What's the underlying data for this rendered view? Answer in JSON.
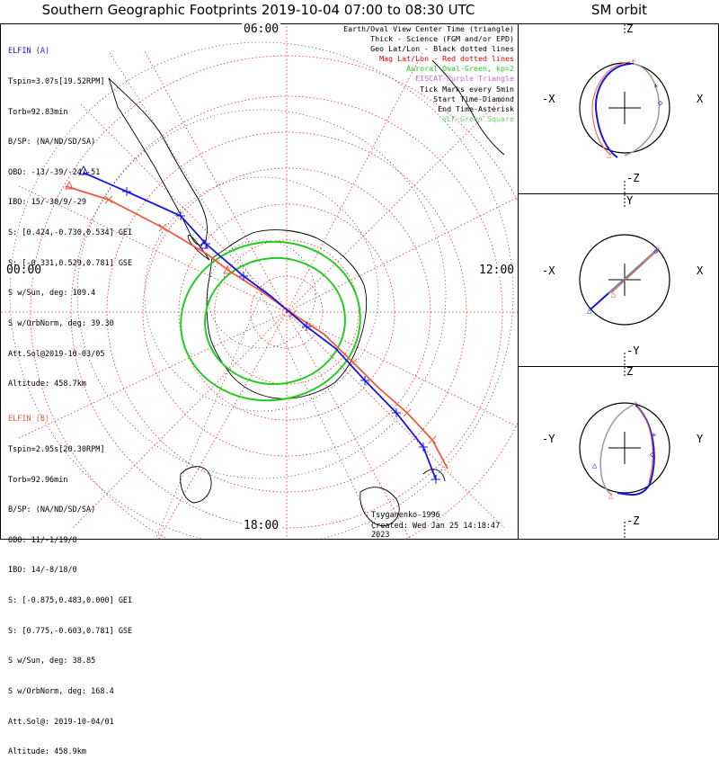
{
  "title": "Southern Geographic Footprints 2019-10-04 07:00 to 08:30 UTC",
  "sm_title": "SM orbit",
  "hour_labels": {
    "top": "06:00",
    "left": "00:00",
    "right": "12:00",
    "bottom": "18:00"
  },
  "elfin_a": {
    "name": "ELFIN (A)",
    "color": "#1515e6",
    "lines": [
      "Tspin=3.07s[19.52RPM]",
      "Torb=92.83min",
      "B/SP: (NA/ND/SD/SA)",
      "OBO: -13/-39/-24/-51",
      "IBO: 15/-30/9/-29",
      "S: [0.424,-0.730,0.534] GEI",
      "S: [-0.331,0.529,0.781] GSE",
      "S w/Sun, deg: 109.4",
      "S w/OrbNorm, deg: 39.30",
      "Att.Sol@2019-10-03/05",
      "Altitude: 458.7km"
    ]
  },
  "elfin_b": {
    "name": "ELFIN (B)",
    "color": "#f05a3c",
    "lines": [
      "Tspin=2.95s[20.30RPM]",
      "Torb=92.96min",
      "B/SP: (NA/ND/SD/SA)",
      "OBO: 11/-1/19/8",
      "IBO: 14/-8/18/0",
      "S: [-0.875,0.483,0.000] GEI",
      "S: [0.775,-0.603,0.781] GSE",
      "S w/Sun, deg: 38.85",
      "S w/OrbNorm, deg: 168.4",
      "Att.Sol@: 2019-10-04/01",
      "Altitude: 458.9km"
    ]
  },
  "legend": [
    {
      "text": "Earth/Oval View Center Time (triangle)",
      "color": "#000000"
    },
    {
      "text": "Thick - Science (FGM and/or EPD)",
      "color": "#000000"
    },
    {
      "text": "Geo Lat/Lon - Black dotted lines",
      "color": "#000000"
    },
    {
      "text": "Mag Lat/Lon - Red dotted lines",
      "color": "#e00000"
    },
    {
      "text": "Auroral Oval-Green, kp=2",
      "color": "#22cc22"
    },
    {
      "text": "EISCAT-Purple Triangle",
      "color": "#cc66cc"
    },
    {
      "text": "Tick Marks every 5min",
      "color": "#000000"
    },
    {
      "text": "Start Time-Diamond",
      "color": "#000000"
    },
    {
      "text": "End Time-Asterisk",
      "color": "#000000"
    },
    {
      "text": "VLF-Green Square",
      "color": "#66cc66"
    }
  ],
  "credits": {
    "author": "Tsyganenko-1996",
    "created": "Created: Wed Jan 25 14:18:47 2023"
  },
  "sm_panels": [
    {
      "top": "Z",
      "bottom": "-Z",
      "left": "-X",
      "right": "X"
    },
    {
      "top": "Y",
      "bottom": "-Y",
      "left": "-X",
      "right": "X"
    },
    {
      "top": "Z",
      "bottom": "-Z",
      "left": "-Y",
      "right": "Y"
    }
  ]
}
